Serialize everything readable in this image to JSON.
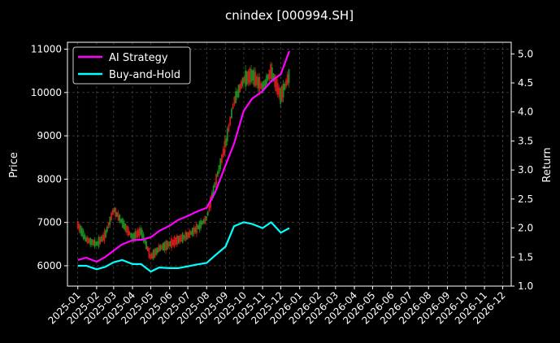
{
  "chart_data": {
    "type": "line",
    "title": "cnindex [000994.SH]",
    "ylabel": "Price",
    "y2label": "Return",
    "ylim": [
      5530,
      11160
    ],
    "y2lim": [
      1.0,
      5.2
    ],
    "xlim": [
      "2024-12-15",
      "2026-12-15"
    ],
    "grid": true,
    "legend_position": "top-left",
    "y_ticks": [
      6000,
      7000,
      8000,
      9000,
      10000,
      11000
    ],
    "y_tick_labels": [
      "6000",
      "7000",
      "8000",
      "9000",
      "10000",
      "11000"
    ],
    "y2_ticks": [
      1.0,
      1.5,
      2.0,
      2.5,
      3.0,
      3.5,
      4.0,
      4.5,
      5.0
    ],
    "y2_tick_labels": [
      "1.0",
      "1.5",
      "2.0",
      "2.5",
      "3.0",
      "3.5",
      "4.0",
      "4.5",
      "5.0"
    ],
    "x_tick_labels": [
      "2025-01",
      "2025-02",
      "2025-03",
      "2025-04",
      "2025-05",
      "2025-06",
      "2025-07",
      "2025-08",
      "2025-09",
      "2025-10",
      "2025-11",
      "2025-12",
      "2026-01",
      "2026-02",
      "2026-03",
      "2026-04",
      "2026-05",
      "2026-06",
      "2026-07",
      "2026-08",
      "2026-09",
      "2026-10",
      "2026-11",
      "2026-12"
    ],
    "series": [
      {
        "name": "AI Strategy",
        "axis": "right",
        "color": "#ff00ff",
        "x": [
          "2025-01-01",
          "2025-01-15",
          "2025-02-01",
          "2025-02-15",
          "2025-03-01",
          "2025-03-15",
          "2025-04-01",
          "2025-04-15",
          "2025-05-01",
          "2025-05-15",
          "2025-06-01",
          "2025-06-15",
          "2025-07-01",
          "2025-07-15",
          "2025-08-01",
          "2025-08-15",
          "2025-09-01",
          "2025-09-15",
          "2025-10-01",
          "2025-10-15",
          "2025-11-01",
          "2025-11-15",
          "2025-12-01",
          "2025-12-15"
        ],
        "values": [
          1.45,
          1.49,
          1.42,
          1.5,
          1.61,
          1.72,
          1.79,
          1.8,
          1.84,
          1.95,
          2.04,
          2.14,
          2.21,
          2.28,
          2.35,
          2.62,
          3.08,
          3.45,
          4.02,
          4.23,
          4.36,
          4.53,
          4.65,
          5.05
        ]
      },
      {
        "name": "Buy-and-Hold",
        "axis": "right",
        "color": "#00ffff",
        "x": [
          "2025-01-01",
          "2025-01-15",
          "2025-02-01",
          "2025-02-15",
          "2025-03-01",
          "2025-03-15",
          "2025-04-01",
          "2025-04-15",
          "2025-05-01",
          "2025-05-15",
          "2025-06-01",
          "2025-06-15",
          "2025-07-01",
          "2025-07-15",
          "2025-08-01",
          "2025-08-15",
          "2025-09-01",
          "2025-09-15",
          "2025-10-01",
          "2025-10-15",
          "2025-11-01",
          "2025-11-15",
          "2025-12-01",
          "2025-12-15"
        ],
        "values": [
          1.35,
          1.35,
          1.29,
          1.33,
          1.41,
          1.45,
          1.38,
          1.38,
          1.25,
          1.32,
          1.31,
          1.31,
          1.34,
          1.37,
          1.4,
          1.53,
          1.68,
          2.03,
          2.1,
          2.07,
          2.0,
          2.1,
          1.92,
          2.0
        ]
      },
      {
        "name": "Price",
        "axis": "left",
        "type": "candlestick",
        "x": [
          "2025-01-01",
          "2025-01-15",
          "2025-02-01",
          "2025-02-15",
          "2025-03-01",
          "2025-03-15",
          "2025-04-01",
          "2025-04-15",
          "2025-05-01",
          "2025-05-15",
          "2025-06-01",
          "2025-06-15",
          "2025-07-01",
          "2025-07-15",
          "2025-08-01",
          "2025-08-15",
          "2025-09-01",
          "2025-09-15",
          "2025-10-01",
          "2025-10-15",
          "2025-11-01",
          "2025-11-15",
          "2025-12-01",
          "2025-12-15"
        ],
        "values": [
          6950,
          6600,
          6500,
          6700,
          7300,
          7000,
          6650,
          6800,
          6200,
          6400,
          6500,
          6600,
          6700,
          6850,
          7100,
          7900,
          8800,
          9800,
          10300,
          10400,
          10100,
          10500,
          9900,
          10400
        ]
      }
    ]
  }
}
